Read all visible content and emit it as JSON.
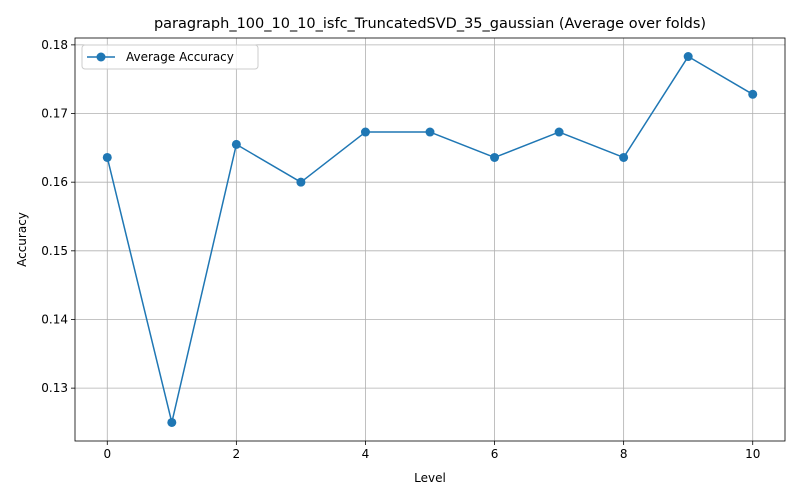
{
  "chart_data": {
    "type": "line",
    "title": "paragraph_100_10_10_isfc_TruncatedSVD_35_gaussian (Average over folds)",
    "xlabel": "Level",
    "ylabel": "Accuracy",
    "xlim": [
      -0.5,
      10.5
    ],
    "ylim": [
      0.1223,
      0.181
    ],
    "xticks": [
      0,
      2,
      4,
      6,
      8,
      10
    ],
    "yticks": [
      0.13,
      0.14,
      0.15,
      0.16,
      0.17,
      0.18
    ],
    "ytick_labels": [
      "0.13",
      "0.14",
      "0.15",
      "0.16",
      "0.17",
      "0.18"
    ],
    "grid": true,
    "legend": "top-left",
    "series": [
      {
        "name": "Average Accuracy",
        "color": "#1f77b4",
        "marker": "circle",
        "x": [
          0,
          1,
          2,
          3,
          4,
          5,
          6,
          7,
          8,
          9,
          10
        ],
        "y": [
          0.1636,
          0.125,
          0.1655,
          0.16,
          0.1673,
          0.1673,
          0.1636,
          0.1673,
          0.1636,
          0.1783,
          0.1728
        ]
      }
    ]
  }
}
